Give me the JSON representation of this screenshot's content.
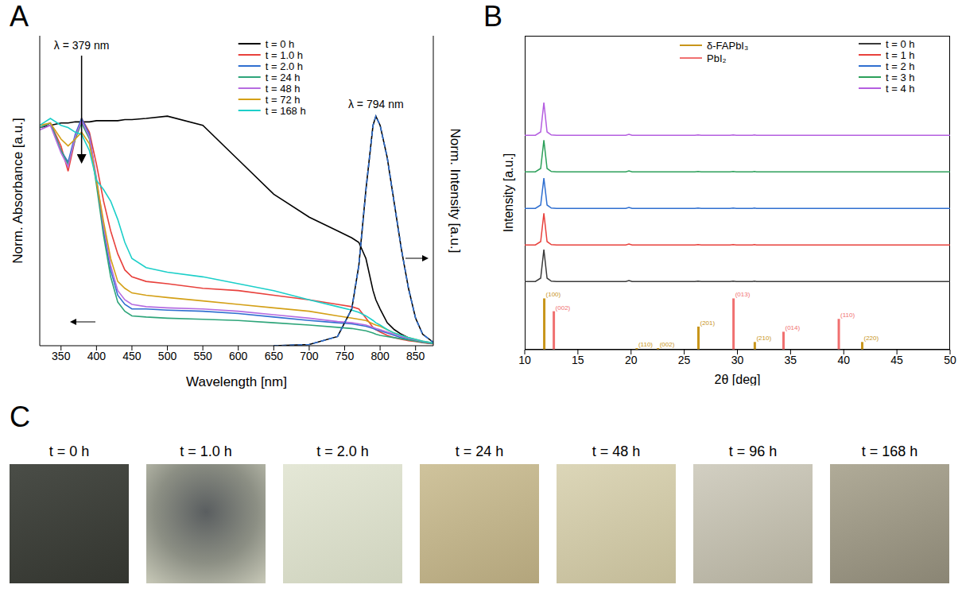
{
  "chart_data": [
    {
      "panel": "A",
      "type": "line",
      "x_label": "Wavelength [nm]",
      "y_label": "Norm. Absorbance [a.u.]",
      "y2_label": "Norm. Intensity [a.u.]",
      "x": [
        320,
        335,
        350,
        360,
        370,
        379,
        390,
        400,
        410,
        420,
        430,
        440,
        450,
        470,
        500,
        550,
        600,
        650,
        700,
        740,
        760,
        770,
        780,
        790,
        794,
        800,
        810,
        820,
        830,
        840,
        850,
        860,
        875
      ],
      "xlim": [
        320,
        875
      ],
      "xticks": [
        350,
        400,
        450,
        500,
        550,
        600,
        650,
        700,
        750,
        800,
        850
      ],
      "ylim": [
        0,
        1.35
      ],
      "y2lim": [
        0,
        1.35
      ],
      "tick_labels": "x",
      "legend": "upper right",
      "annotations": [
        {
          "text": "λ = 379 nm",
          "x": 379
        },
        {
          "text": "λ = 794 nm",
          "x": 794
        }
      ],
      "series": [
        {
          "name": "t = 0 h",
          "color": "#000000",
          "values": [
            0.95,
            0.96,
            0.97,
            0.97,
            0.975,
            0.975,
            0.975,
            0.98,
            0.98,
            0.98,
            0.98,
            0.985,
            0.985,
            0.99,
            1.0,
            0.96,
            0.81,
            0.66,
            0.56,
            0.5,
            0.47,
            0.45,
            0.38,
            0.24,
            0.2,
            0.16,
            0.1,
            0.07,
            0.05,
            0.035,
            0.025,
            0.015,
            0.01
          ]
        },
        {
          "name": "t = 1.0 h",
          "color": "#e8413c",
          "values": [
            0.95,
            0.97,
            0.87,
            0.76,
            0.9,
            0.99,
            0.93,
            0.79,
            0.63,
            0.5,
            0.4,
            0.33,
            0.3,
            0.28,
            0.27,
            0.25,
            0.24,
            0.22,
            0.2,
            0.18,
            0.17,
            0.16,
            0.12,
            0.08,
            0.07,
            0.06,
            0.045,
            0.035,
            0.028,
            0.022,
            0.018,
            0.013,
            0.008
          ]
        },
        {
          "name": "t = 2.0 h",
          "color": "#2f6fd0",
          "values": [
            0.95,
            0.97,
            0.85,
            0.8,
            0.92,
            0.99,
            0.92,
            0.72,
            0.5,
            0.33,
            0.22,
            0.18,
            0.16,
            0.16,
            0.155,
            0.15,
            0.14,
            0.125,
            0.11,
            0.1,
            0.095,
            0.09,
            0.085,
            0.075,
            0.07,
            0.065,
            0.055,
            0.045,
            0.035,
            0.028,
            0.022,
            0.015,
            0.01
          ]
        },
        {
          "name": "t = 24 h",
          "color": "#2ea57a",
          "values": [
            0.95,
            0.97,
            0.85,
            0.79,
            0.9,
            0.97,
            0.9,
            0.7,
            0.48,
            0.3,
            0.19,
            0.15,
            0.13,
            0.125,
            0.12,
            0.115,
            0.11,
            0.1,
            0.09,
            0.08,
            0.075,
            0.07,
            0.065,
            0.055,
            0.05,
            0.045,
            0.04,
            0.035,
            0.03,
            0.025,
            0.02,
            0.015,
            0.01
          ]
        },
        {
          "name": "t = 48 h",
          "color": "#b66ce0",
          "values": [
            0.94,
            0.96,
            0.84,
            0.78,
            0.91,
            0.98,
            0.91,
            0.73,
            0.52,
            0.35,
            0.24,
            0.2,
            0.18,
            0.17,
            0.165,
            0.16,
            0.15,
            0.135,
            0.12,
            0.105,
            0.1,
            0.095,
            0.09,
            0.08,
            0.075,
            0.07,
            0.06,
            0.05,
            0.04,
            0.032,
            0.025,
            0.018,
            0.012
          ]
        },
        {
          "name": "t = 72 h",
          "color": "#d4a017",
          "values": [
            0.96,
            0.97,
            0.9,
            0.87,
            0.9,
            0.93,
            0.88,
            0.72,
            0.54,
            0.38,
            0.28,
            0.25,
            0.23,
            0.22,
            0.21,
            0.195,
            0.18,
            0.165,
            0.15,
            0.13,
            0.12,
            0.115,
            0.11,
            0.095,
            0.09,
            0.085,
            0.07,
            0.055,
            0.045,
            0.035,
            0.028,
            0.02,
            0.012
          ]
        },
        {
          "name": "t = 168 h",
          "color": "#1ccfc9",
          "values": [
            0.96,
            0.99,
            0.96,
            0.95,
            0.93,
            0.92,
            0.85,
            0.72,
            0.68,
            0.63,
            0.55,
            0.45,
            0.38,
            0.34,
            0.32,
            0.3,
            0.27,
            0.24,
            0.2,
            0.17,
            0.155,
            0.145,
            0.13,
            0.11,
            0.1,
            0.09,
            0.07,
            0.055,
            0.045,
            0.035,
            0.028,
            0.02,
            0.012
          ]
        },
        {
          "color": "#000000",
          "axis": "y2",
          "line_style": "solid",
          "values": [
            null,
            null,
            null,
            null,
            null,
            null,
            null,
            null,
            null,
            null,
            null,
            null,
            null,
            null,
            null,
            null,
            null,
            0,
            0.005,
            0.04,
            0.16,
            0.35,
            0.68,
            0.96,
            1.0,
            0.96,
            0.82,
            0.62,
            0.42,
            0.25,
            0.12,
            0.05,
            0.015
          ]
        },
        {
          "color": "#2f6fd0",
          "axis": "y2",
          "line_style": "dashed",
          "values": [
            null,
            null,
            null,
            null,
            null,
            null,
            null,
            null,
            null,
            null,
            null,
            null,
            null,
            null,
            null,
            null,
            null,
            0,
            0.005,
            0.04,
            0.16,
            0.35,
            0.68,
            0.96,
            1.0,
            0.96,
            0.82,
            0.62,
            0.42,
            0.25,
            0.12,
            0.05,
            0.015
          ]
        }
      ]
    },
    {
      "panel": "B",
      "type": "line",
      "x_label": "2θ [deg]",
      "y_label": "Intensity [a.u.]",
      "x": [
        10,
        11,
        11.5,
        11.8,
        12.1,
        12.5,
        13,
        15,
        19.5,
        19.8,
        20.1,
        25,
        26,
        26.3,
        26.6,
        29.3,
        29.6,
        29.9,
        31.4,
        31.6,
        31.8,
        35,
        40,
        45,
        50
      ],
      "xlim": [
        10,
        50
      ],
      "xticks": [
        10,
        15,
        20,
        25,
        30,
        35,
        40,
        45,
        50
      ],
      "ylim": [
        0,
        1.1
      ],
      "tick_labels": "x",
      "legend": "upper right",
      "series": [
        {
          "name": "t = 0 h",
          "color": "#3a3a3a",
          "values": [
            0.02,
            0.02,
            0.12,
            0.98,
            0.12,
            0.03,
            0.02,
            0.02,
            0.02,
            0.045,
            0.02,
            0.02,
            0.02,
            0.03,
            0.02,
            0.02,
            0.03,
            0.02,
            0.02,
            0.03,
            0.02,
            0.02,
            0.02,
            0.02,
            0.02
          ]
        },
        {
          "name": "t = 1 h",
          "color": "#e8413c",
          "values": [
            0.02,
            0.02,
            0.12,
            0.97,
            0.12,
            0.03,
            0.02,
            0.02,
            0.02,
            0.045,
            0.02,
            0.02,
            0.02,
            0.03,
            0.02,
            0.02,
            0.03,
            0.02,
            0.02,
            0.03,
            0.02,
            0.02,
            0.02,
            0.02,
            0.02
          ]
        },
        {
          "name": "t = 2 h",
          "color": "#2f6fd0",
          "values": [
            0.02,
            0.02,
            0.12,
            0.93,
            0.12,
            0.03,
            0.02,
            0.02,
            0.02,
            0.045,
            0.02,
            0.02,
            0.02,
            0.03,
            0.02,
            0.02,
            0.03,
            0.02,
            0.02,
            0.03,
            0.02,
            0.02,
            0.02,
            0.02,
            0.02
          ]
        },
        {
          "name": "t = 3 h",
          "color": "#2ca05a",
          "values": [
            0.02,
            0.02,
            0.12,
            0.97,
            0.12,
            0.03,
            0.02,
            0.02,
            0.02,
            0.045,
            0.02,
            0.02,
            0.02,
            0.03,
            0.02,
            0.02,
            0.03,
            0.02,
            0.02,
            0.03,
            0.02,
            0.02,
            0.02,
            0.02,
            0.02
          ]
        },
        {
          "name": "t = 4 h",
          "color": "#b45ee0",
          "values": [
            0.02,
            0.02,
            0.12,
            1.0,
            0.12,
            0.03,
            0.02,
            0.02,
            0.02,
            0.045,
            0.02,
            0.02,
            0.02,
            0.03,
            0.02,
            0.02,
            0.03,
            0.02,
            0.02,
            0.03,
            0.02,
            0.02,
            0.02,
            0.02,
            0.02
          ]
        }
      ],
      "reference": [
        {
          "name": "δ-FAPbI₃",
          "color": "#c8951a",
          "peaks": [
            {
              "x": 11.8,
              "value": 1.0,
              "label": "(100)"
            },
            {
              "x": 20.5,
              "value": 0.03,
              "label": "(110)"
            },
            {
              "x": 22.5,
              "value": 0.03,
              "label": "(002)"
            },
            {
              "x": 26.3,
              "value": 0.45,
              "label": "(201)"
            },
            {
              "x": 31.6,
              "value": 0.15,
              "label": "(210)"
            },
            {
              "x": 41.7,
              "value": 0.15,
              "label": "(220)"
            }
          ]
        },
        {
          "name": "PbI₂",
          "color": "#f07070",
          "peaks": [
            {
              "x": 12.7,
              "value": 0.75,
              "label": "(002)"
            },
            {
              "x": 29.6,
              "value": 1.0,
              "label": "(013)"
            },
            {
              "x": 34.3,
              "value": 0.35,
              "label": "(014)"
            },
            {
              "x": 39.5,
              "value": 0.6,
              "label": "(110)"
            }
          ]
        }
      ]
    }
  ],
  "photos": {
    "panel": "C",
    "labels": [
      "t = 0 h",
      "t = 1.0 h",
      "t = 2.0 h",
      "t = 24 h",
      "t = 48 h",
      "t = 96 h",
      "t = 168 h"
    ]
  }
}
